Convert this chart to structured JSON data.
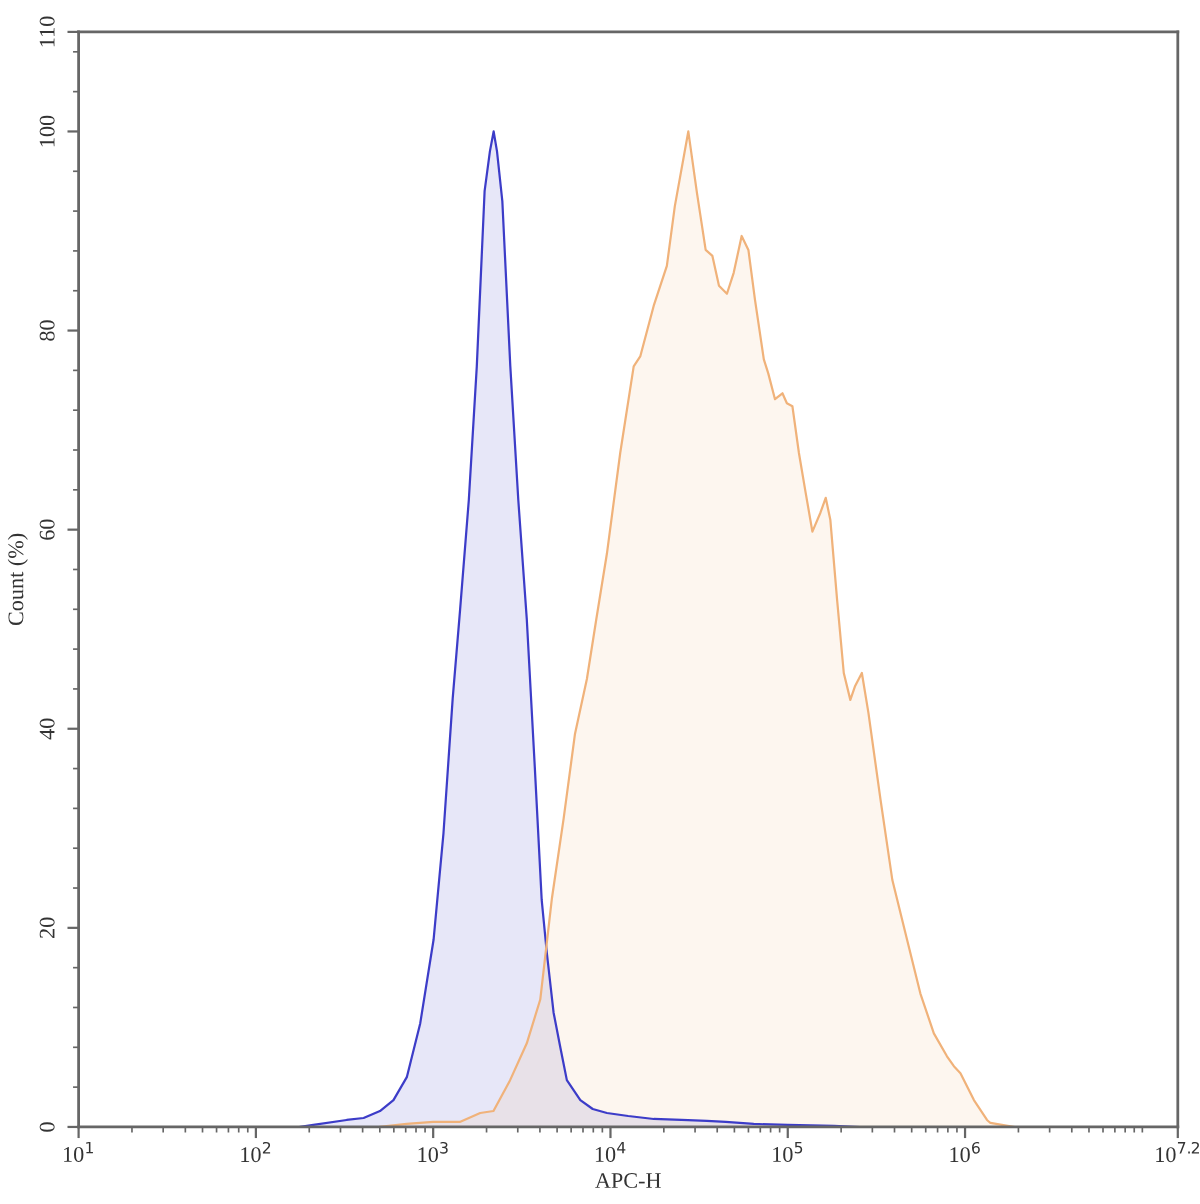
{
  "chart_data": {
    "type": "area",
    "xlabel": "APC-H",
    "ylabel": "Count (%)",
    "log": "x",
    "xlim": [
      10,
      15848932
    ],
    "ylim": [
      0,
      110
    ],
    "xticks": [
      {
        "value": 10,
        "label": "10$^{1}$"
      },
      {
        "value": 100,
        "label": "10$^{2}$"
      },
      {
        "value": 1000,
        "label": "10$^{3}$"
      },
      {
        "value": 10000,
        "label": "10$^{4}$"
      },
      {
        "value": 100000,
        "label": "10$^{5}$"
      },
      {
        "value": 1000000,
        "label": "10$^{6}$"
      },
      {
        "value": 15848932,
        "label": "10$^{7.2}$"
      }
    ],
    "yticks": [
      0,
      20,
      40,
      60,
      80,
      100,
      110
    ],
    "series": [
      {
        "color": "#3c3cc8",
        "x": [
          178,
          211,
          325,
          405,
          501,
          597,
          710,
          845,
          1005,
          1143,
          1288,
          1419,
          1589,
          1762,
          1950,
          2089,
          2193,
          2291,
          2455,
          2723,
          3020,
          3373,
          3741,
          4093,
          4375,
          4775,
          5212,
          5675,
          6761,
          7943,
          9550,
          12590,
          17540,
          25120,
          34990,
          44670,
          64270,
          100000,
          182000,
          251200
        ],
        "values": [
          0,
          0.2,
          0.7,
          0.9,
          1.6,
          2.7,
          5.0,
          10.4,
          18.8,
          29.5,
          43,
          52,
          63,
          76.4,
          94,
          98,
          100,
          98,
          93,
          76.4,
          63,
          51,
          36.2,
          22.8,
          17.5,
          11.5,
          8,
          4.7,
          2.7,
          1.8,
          1.4,
          1.1,
          0.8,
          0.7,
          0.6,
          0.5,
          0.3,
          0.2,
          0.1,
          0
        ]
      },
      {
        "color": "#f0b27a",
        "x": [
          501,
          708,
          1000,
          1413,
          1841,
          2188,
          2716,
          3373,
          4018,
          4677,
          5445,
          6310,
          7362,
          8318,
          9550,
          11350,
          13520,
          14720,
          17540,
          20800,
          23070,
          27480,
          30760,
          34430,
          37580,
          40930,
          45390,
          49550,
          54950,
          59980,
          65310,
          73280,
          77620,
          84720,
          93330,
          98860,
          106200,
          115600,
          126200,
          137700,
          152800,
          163700,
          173800,
          189700,
          207000,
          225400,
          239900,
          261800,
          285100,
          333400,
          389000,
          471000,
          559800,
          666800,
          790700,
          865000,
          941900,
          1122000,
          1330000,
          1390000,
          1884000
        ],
        "values": [
          0,
          0.3,
          0.5,
          0.5,
          1.4,
          1.6,
          4.7,
          8.4,
          12.8,
          23,
          31,
          39.5,
          45,
          51,
          57.6,
          67.7,
          76.4,
          77.4,
          82.5,
          86.5,
          92.5,
          100,
          93.8,
          88.1,
          87.5,
          84.5,
          83.7,
          85.8,
          89.5,
          88.1,
          83.1,
          77.1,
          75.7,
          73.1,
          73.7,
          72.7,
          72.4,
          67.7,
          63.7,
          59.8,
          61.7,
          63.2,
          61,
          53,
          45.6,
          42.9,
          44.3,
          45.6,
          41.6,
          32.9,
          24.8,
          18.8,
          13.4,
          9.4,
          7.1,
          6.1,
          5.4,
          2.7,
          0.7,
          0.4,
          0
        ]
      }
    ]
  }
}
